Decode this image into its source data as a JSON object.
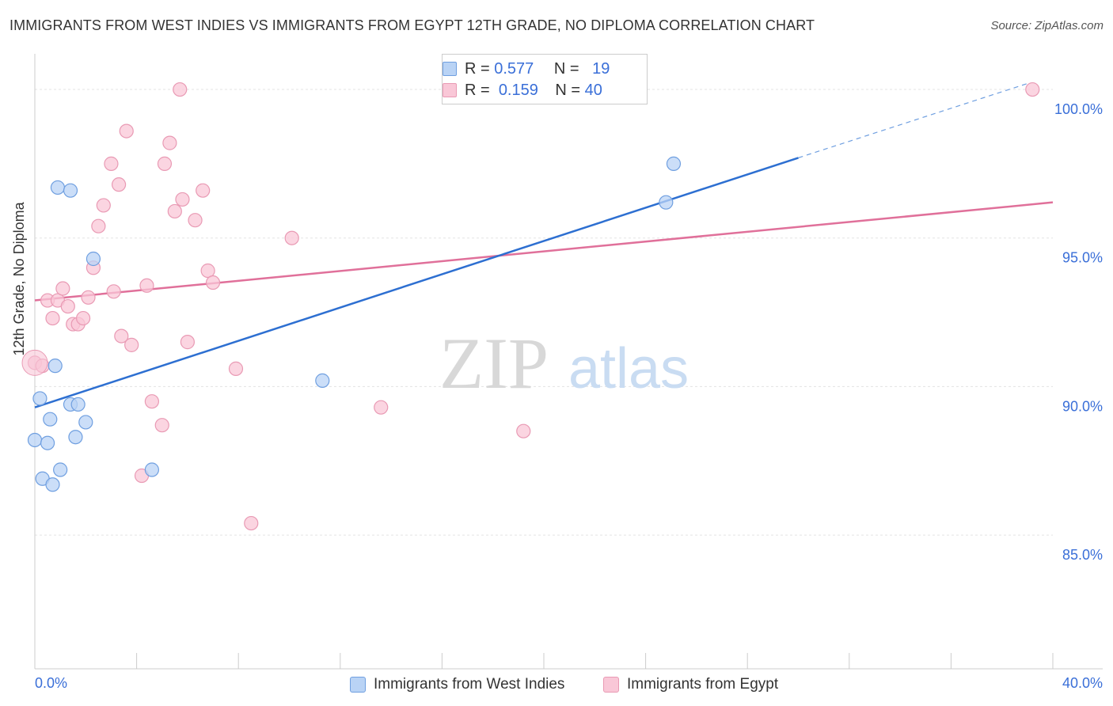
{
  "title": "IMMIGRANTS FROM WEST INDIES VS IMMIGRANTS FROM EGYPT 12TH GRADE, NO DIPLOMA CORRELATION CHART",
  "source": "Source: ZipAtlas.com",
  "watermark": {
    "zip": "ZIP",
    "atlas": "atlas"
  },
  "legend": {
    "series1": {
      "r_label": "R =",
      "r_value": "0.577",
      "n_label": "N =",
      "n_value": "19"
    },
    "series2": {
      "r_label": "R =",
      "r_value": "0.159",
      "n_label": "N =",
      "n_value": "40"
    }
  },
  "colors": {
    "blue_fill": "#b9d3f5",
    "blue_stroke": "#6f9fe0",
    "blue_line": "#2d6fd1",
    "pink_fill": "#f9c7d7",
    "pink_stroke": "#e99ab4",
    "pink_line": "#e0709a",
    "axis_text": "#3a6fd8",
    "grid": "#e3e3e3"
  },
  "chart_data": {
    "type": "scatter",
    "title": "IMMIGRANTS FROM WEST INDIES VS IMMIGRANTS FROM EGYPT 12TH GRADE, NO DIPLOMA CORRELATION CHART",
    "xlabel": "",
    "ylabel": "12th Grade, No Diploma",
    "xlim": [
      0,
      40
    ],
    "ylim": [
      80.5,
      101.2
    ],
    "x_tick_labels": {
      "left": "0.0%",
      "right": "40.0%"
    },
    "y_ticks": [
      85,
      90,
      95,
      100
    ],
    "y_tick_labels": [
      "85.0%",
      "90.0%",
      "95.0%",
      "100.0%"
    ],
    "legend_placement": "top-center",
    "series": [
      {
        "name": "Immigrants from West Indies",
        "color": "blue",
        "points": [
          [
            0.0,
            88.2
          ],
          [
            0.2,
            89.6
          ],
          [
            0.3,
            86.9
          ],
          [
            0.5,
            88.1
          ],
          [
            0.6,
            88.9
          ],
          [
            0.7,
            86.7
          ],
          [
            0.8,
            90.7
          ],
          [
            0.9,
            96.7
          ],
          [
            1.0,
            87.2
          ],
          [
            1.4,
            89.4
          ],
          [
            1.4,
            96.6
          ],
          [
            1.6,
            88.3
          ],
          [
            1.7,
            89.4
          ],
          [
            2.0,
            88.8
          ],
          [
            2.3,
            94.3
          ],
          [
            4.6,
            87.2
          ],
          [
            11.3,
            90.2
          ],
          [
            24.8,
            96.2
          ],
          [
            25.1,
            97.5
          ]
        ],
        "trend": {
          "x": [
            0.0,
            30.0
          ],
          "y": [
            89.3,
            97.7
          ]
        },
        "trend_extension": {
          "x": [
            30.0,
            39.0
          ],
          "y": [
            97.7,
            100.2
          ]
        }
      },
      {
        "name": "Immigrants from Egypt",
        "color": "pink",
        "points": [
          [
            0.0,
            90.8
          ],
          [
            0.3,
            90.7
          ],
          [
            0.5,
            92.9
          ],
          [
            0.7,
            92.3
          ],
          [
            0.9,
            92.9
          ],
          [
            1.1,
            93.3
          ],
          [
            1.3,
            92.7
          ],
          [
            1.5,
            92.1
          ],
          [
            1.7,
            92.1
          ],
          [
            1.9,
            92.3
          ],
          [
            2.1,
            93.0
          ],
          [
            2.3,
            94.0
          ],
          [
            2.5,
            95.4
          ],
          [
            2.7,
            96.1
          ],
          [
            3.0,
            97.5
          ],
          [
            3.1,
            93.2
          ],
          [
            3.3,
            96.8
          ],
          [
            3.4,
            91.7
          ],
          [
            3.6,
            98.6
          ],
          [
            3.8,
            91.4
          ],
          [
            4.2,
            87.0
          ],
          [
            4.4,
            93.4
          ],
          [
            4.6,
            89.5
          ],
          [
            5.0,
            88.7
          ],
          [
            5.1,
            97.5
          ],
          [
            5.3,
            98.2
          ],
          [
            5.5,
            95.9
          ],
          [
            5.7,
            100.0
          ],
          [
            5.8,
            96.3
          ],
          [
            6.0,
            91.5
          ],
          [
            6.3,
            95.6
          ],
          [
            6.6,
            96.6
          ],
          [
            6.8,
            93.9
          ],
          [
            7.0,
            93.5
          ],
          [
            7.9,
            90.6
          ],
          [
            8.5,
            85.4
          ],
          [
            10.1,
            95.0
          ],
          [
            13.6,
            89.3
          ],
          [
            19.2,
            88.5
          ],
          [
            39.2,
            100.0
          ]
        ],
        "trend": {
          "x": [
            0.0,
            40.0
          ],
          "y": [
            92.9,
            96.2
          ]
        }
      }
    ]
  },
  "bottom_legend": {
    "item1": "Immigrants from West Indies",
    "item2": "Immigrants from Egypt"
  }
}
